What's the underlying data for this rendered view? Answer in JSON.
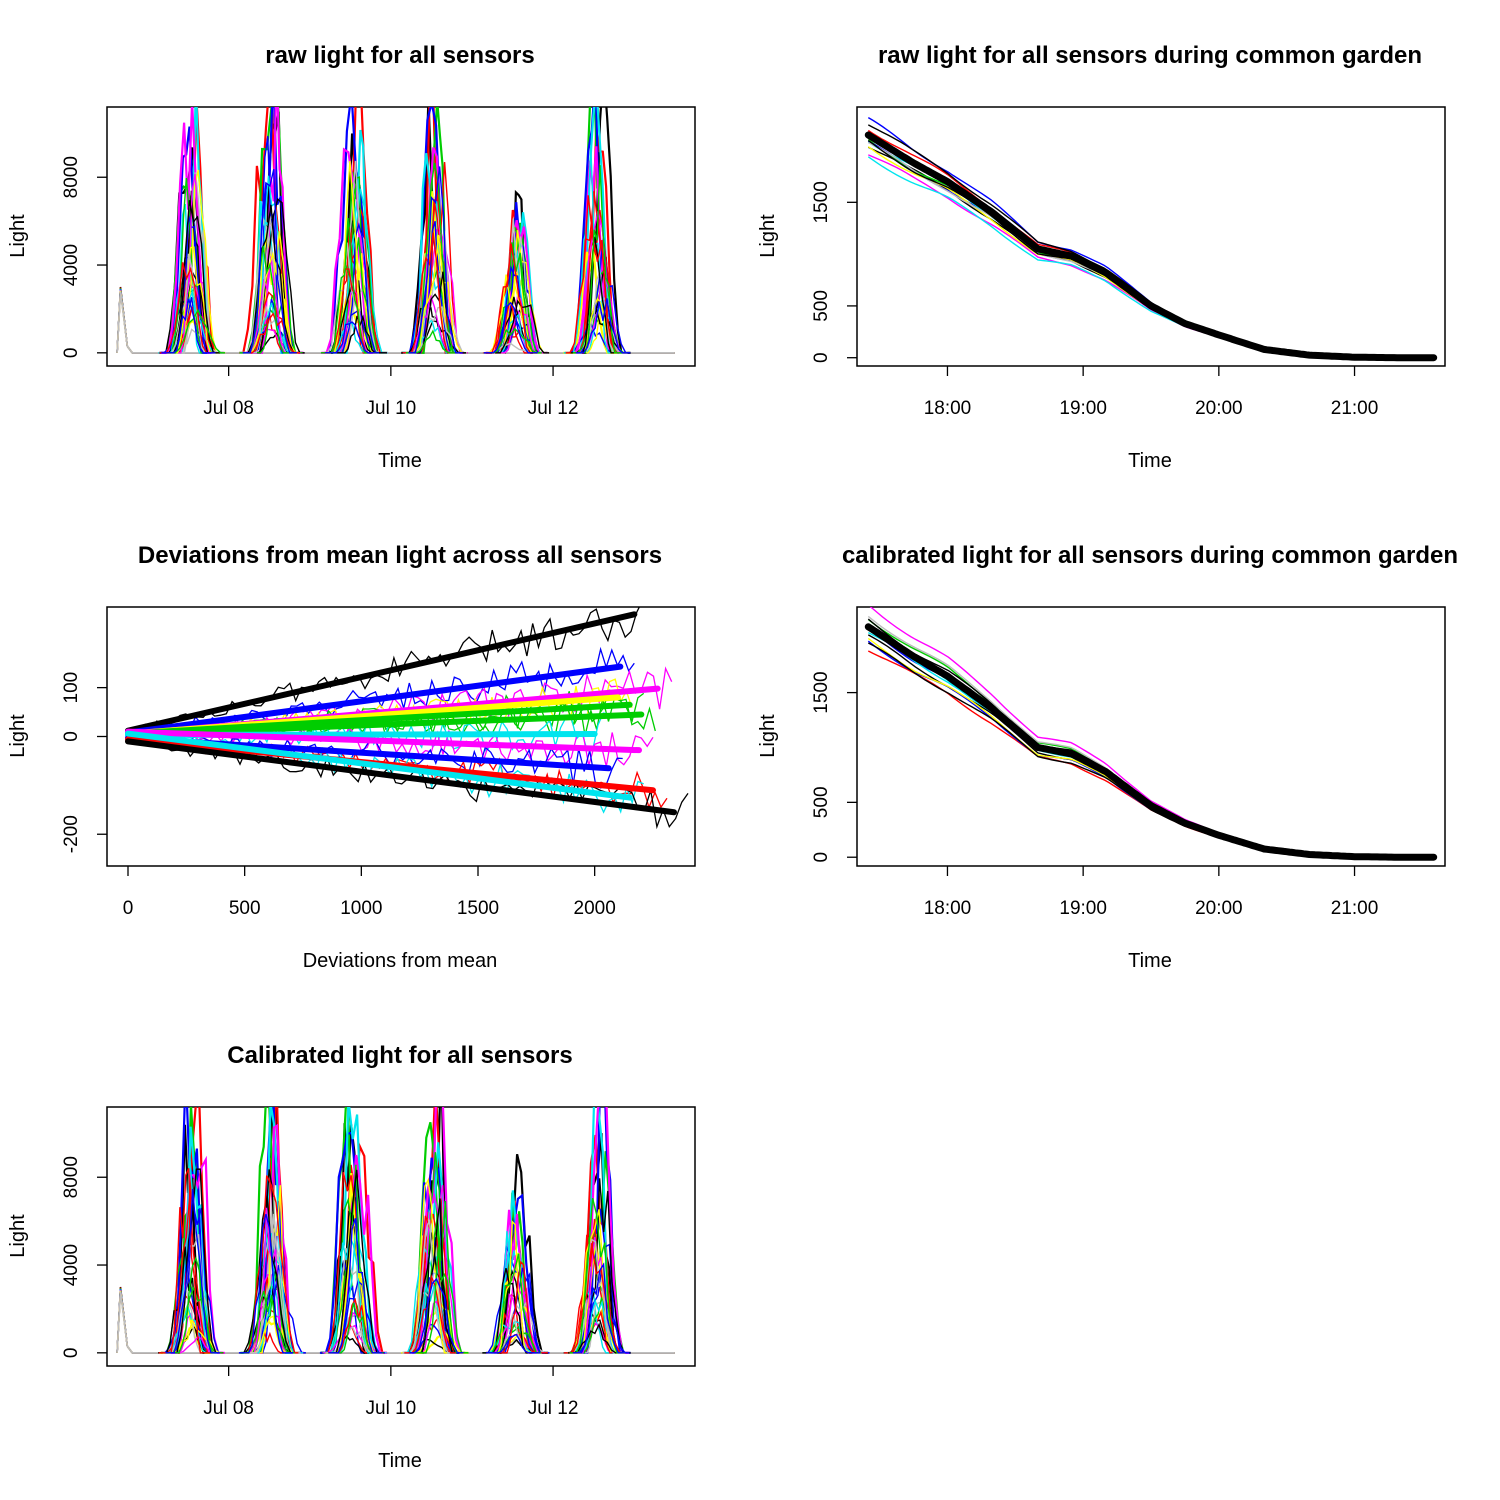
{
  "chart_data": [
    {
      "type": "line",
      "title": "raw light for all sensors",
      "xlabel": "Time",
      "ylabel": "Light",
      "x_axis": "date",
      "xlim": [
        "2020-07-06T12:00",
        "2020-07-13T18:00"
      ],
      "ylim": [
        -600,
        11200
      ],
      "xticks": [
        {
          "x": "2020-07-08T00:00",
          "label": "Jul 08"
        },
        {
          "x": "2020-07-10T00:00",
          "label": "Jul 10"
        },
        {
          "x": "2020-07-12T00:00",
          "label": "Jul 12"
        }
      ],
      "yticks": [
        {
          "y": 0,
          "label": "0"
        },
        {
          "y": 4000,
          "label": "4000"
        },
        {
          "y": 8000,
          "label": "8000"
        }
      ],
      "series_colors": [
        "#000000",
        "#ff0000",
        "#00cd00",
        "#0000ff",
        "#00e5ee",
        "#ff00ff",
        "#ffff00",
        "#bebebe"
      ],
      "day_peaks": [
        {
          "day": "2020-07-07",
          "peak": 11200
        },
        {
          "day": "2020-07-08",
          "peak": 11200
        },
        {
          "day": "2020-07-09",
          "peak": 11200
        },
        {
          "day": "2020-07-10",
          "peak": 11200
        },
        {
          "day": "2020-07-11",
          "peak": 7300
        },
        {
          "day": "2020-07-12",
          "peak": 11200
        }
      ]
    },
    {
      "type": "line",
      "title": "raw light for all sensors during common garden",
      "xlabel": "Time",
      "ylabel": "Light",
      "x_axis": "time",
      "xlim": [
        "17:20",
        "21:40"
      ],
      "ylim": [
        -80,
        2420
      ],
      "xticks": [
        {
          "x": "18:00",
          "label": "18:00"
        },
        {
          "x": "19:00",
          "label": "19:00"
        },
        {
          "x": "20:00",
          "label": "20:00"
        },
        {
          "x": "21:00",
          "label": "21:00"
        }
      ],
      "yticks": [
        {
          "y": 0,
          "label": "0"
        },
        {
          "y": 500,
          "label": "500"
        },
        {
          "y": 1500,
          "label": "1500"
        }
      ],
      "mean_series": {
        "name": "",
        "color": "#000000",
        "x": [
          "17:25",
          "17:45",
          "18:00",
          "18:20",
          "18:40",
          "18:55",
          "19:10",
          "19:30",
          "19:45",
          "20:00",
          "20:20",
          "20:40",
          "21:00",
          "21:20",
          "21:35"
        ],
        "y": [
          2150,
          1880,
          1700,
          1400,
          1050,
          980,
          820,
          500,
          330,
          220,
          80,
          25,
          5,
          0,
          0
        ]
      }
    },
    {
      "type": "line",
      "title": "Deviations from mean light across all sensors",
      "xlabel": "Deviations from mean",
      "ylabel": "Light",
      "xlim": [
        -90,
        2430
      ],
      "ylim": [
        -265,
        265
      ],
      "xticks": [
        {
          "x": 0,
          "label": "0"
        },
        {
          "x": 500,
          "label": "500"
        },
        {
          "x": 1000,
          "label": "1000"
        },
        {
          "x": 1500,
          "label": "1500"
        },
        {
          "x": 2000,
          "label": "2000"
        }
      ],
      "yticks": [
        {
          "y": -200,
          "label": "-200"
        },
        {
          "y": 0,
          "label": "0"
        },
        {
          "y": 100,
          "label": "100"
        }
      ],
      "fit_lines": [
        {
          "color": "#000000",
          "x1": 0,
          "y1": 12,
          "x2": 2170,
          "y2": 250
        },
        {
          "color": "#0000ff",
          "x1": 0,
          "y1": 8,
          "x2": 2110,
          "y2": 143
        },
        {
          "color": "#ff00ff",
          "x1": 0,
          "y1": 5,
          "x2": 2270,
          "y2": 98
        },
        {
          "color": "#ffff00",
          "x1": 0,
          "y1": 6,
          "x2": 2100,
          "y2": 80
        },
        {
          "color": "#00cd00",
          "x1": 0,
          "y1": 6,
          "x2": 2150,
          "y2": 65
        },
        {
          "color": "#00cd00",
          "x1": 0,
          "y1": 4,
          "x2": 2200,
          "y2": 45
        },
        {
          "color": "#00e5ee",
          "x1": 0,
          "y1": 3,
          "x2": 2000,
          "y2": 5
        },
        {
          "color": "#ff00ff",
          "x1": 0,
          "y1": 10,
          "x2": 2190,
          "y2": -28
        },
        {
          "color": "#0000ff",
          "x1": 0,
          "y1": -3,
          "x2": 2060,
          "y2": -65
        },
        {
          "color": "#ff0000",
          "x1": 0,
          "y1": -6,
          "x2": 2250,
          "y2": -110
        },
        {
          "color": "#00e5ee",
          "x1": 0,
          "y1": 6,
          "x2": 2150,
          "y2": -125
        },
        {
          "color": "#000000",
          "x1": 0,
          "y1": -10,
          "x2": 2340,
          "y2": -155
        }
      ]
    },
    {
      "type": "line",
      "title": "calibrated light for all sensors during common garden",
      "xlabel": "Time",
      "ylabel": "Light",
      "x_axis": "time",
      "xlim": [
        "17:20",
        "21:40"
      ],
      "ylim": [
        -80,
        2280
      ],
      "xticks": [
        {
          "x": "18:00",
          "label": "18:00"
        },
        {
          "x": "19:00",
          "label": "19:00"
        },
        {
          "x": "20:00",
          "label": "20:00"
        },
        {
          "x": "21:00",
          "label": "21:00"
        }
      ],
      "yticks": [
        {
          "y": 0,
          "label": "0"
        },
        {
          "y": 500,
          "label": "500"
        },
        {
          "y": 1500,
          "label": "1500"
        }
      ],
      "mean_series": {
        "name": "",
        "color": "#000000",
        "x": [
          "17:25",
          "17:45",
          "18:00",
          "18:20",
          "18:40",
          "18:55",
          "19:10",
          "19:30",
          "19:45",
          "20:00",
          "20:20",
          "20:40",
          "21:00",
          "21:20",
          "21:35"
        ],
        "y": [
          2100,
          1830,
          1650,
          1350,
          1000,
          940,
          780,
          470,
          310,
          200,
          75,
          25,
          5,
          0,
          0
        ]
      }
    },
    {
      "type": "line",
      "title": "Calibrated light for all sensors",
      "xlabel": "Time",
      "ylabel": "Light",
      "x_axis": "date",
      "xlim": [
        "2020-07-06T12:00",
        "2020-07-13T18:00"
      ],
      "ylim": [
        -600,
        11200
      ],
      "xticks": [
        {
          "x": "2020-07-08T00:00",
          "label": "Jul 08"
        },
        {
          "x": "2020-07-10T00:00",
          "label": "Jul 10"
        },
        {
          "x": "2020-07-12T00:00",
          "label": "Jul 12"
        }
      ],
      "yticks": [
        {
          "y": 0,
          "label": "0"
        },
        {
          "y": 4000,
          "label": "4000"
        },
        {
          "y": 8000,
          "label": "8000"
        }
      ],
      "series_colors": [
        "#000000",
        "#ff0000",
        "#00cd00",
        "#0000ff",
        "#00e5ee",
        "#ff00ff",
        "#ffff00",
        "#bebebe"
      ],
      "day_peaks": [
        {
          "day": "2020-07-07",
          "peak": 11200
        },
        {
          "day": "2020-07-08",
          "peak": 11200
        },
        {
          "day": "2020-07-09",
          "peak": 11200
        },
        {
          "day": "2020-07-10",
          "peak": 11200
        },
        {
          "day": "2020-07-11",
          "peak": 7300
        },
        {
          "day": "2020-07-12",
          "peak": 11200
        }
      ]
    }
  ]
}
